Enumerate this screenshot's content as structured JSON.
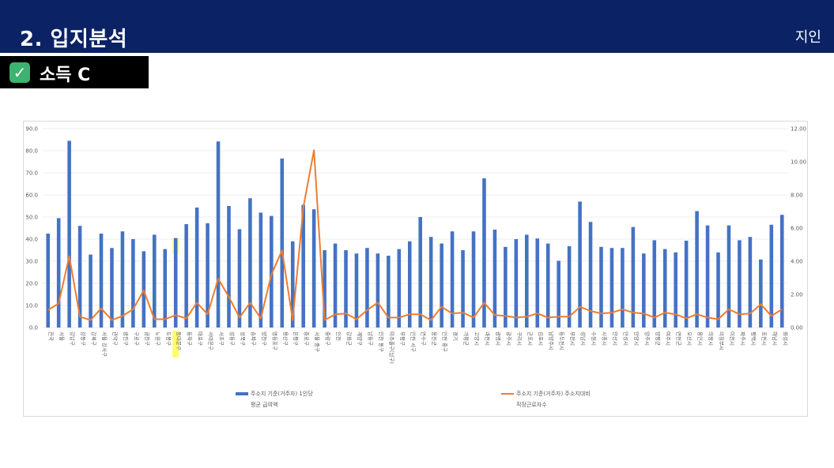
{
  "header": {
    "title": "2. 입지분석",
    "tag": "지인"
  },
  "section": {
    "label": "소득 C",
    "icon": "check-mark-icon"
  },
  "colors": {
    "header_bg": "#0b2265",
    "bar": "#4472c4",
    "line": "#ed7d31",
    "highlight": "#ffff66"
  },
  "chart_data": {
    "type": "bar",
    "categories": [
      "전국",
      "서울",
      "강남구",
      "강동구",
      "강북구",
      "서울 강서구",
      "관악구",
      "광진구",
      "구로구",
      "금천구",
      "노원구",
      "도봉구",
      "동대문구",
      "동작구",
      "마포구",
      "서대문구",
      "서초구",
      "성동구",
      "성북구",
      "송파구",
      "양천구",
      "영등포구",
      "용산구",
      "은평구",
      "종로구",
      "서울 중구",
      "중랑구",
      "인천",
      "강화군",
      "계양구",
      "남동구",
      "인천 동구",
      "미추홀구(남구)",
      "부평구",
      "인천 서구",
      "연수구",
      "옹진군",
      "인천 중구",
      "경기",
      "가평군",
      "고양시",
      "과천시",
      "광명시",
      "광주시",
      "구리시",
      "군포시",
      "김포시",
      "남양주시",
      "동두천시",
      "부천시",
      "성남시",
      "수원시",
      "시흥시",
      "안산시",
      "안성시",
      "안양시",
      "양주시",
      "양평군",
      "여주시",
      "연천군",
      "오산시",
      "용인시",
      "의왕시",
      "의정부시",
      "이천시",
      "파주시",
      "평택시",
      "포천시",
      "하남시",
      "화성시"
    ],
    "series": [
      {
        "name": "주소지 기준(거주자) 1인당",
        "name2": "평균 급여액",
        "axis": "left",
        "values": [
          42.5,
          49.5,
          84.5,
          46,
          33,
          42.5,
          36,
          43.5,
          40,
          34.5,
          42,
          35.5,
          40.5,
          46.8,
          54.3,
          47.2,
          84.2,
          55,
          44.5,
          58.5,
          52,
          50.5,
          76.5,
          39,
          55.5,
          53.5,
          35,
          38,
          35,
          33.5,
          36,
          33.5,
          32.5,
          35.5,
          39,
          50,
          41,
          38,
          43.5,
          35,
          43.5,
          67.5,
          44.3,
          36.5,
          40,
          42,
          40.3,
          38,
          30.2,
          36.8,
          57,
          47.8,
          36.5,
          36,
          36,
          45.5,
          33.5,
          39.5,
          35.5,
          34,
          39.3,
          52.7,
          46.2,
          34,
          46.2,
          39.5,
          41,
          30.8,
          46.5,
          51
        ]
      },
      {
        "name": "주소지 기준(거주자) 주소지대비",
        "name2": "직장근로자수",
        "axis": "right",
        "values": [
          1.05,
          1.45,
          4.3,
          0.65,
          0.45,
          1.15,
          0.45,
          0.7,
          1.1,
          2.25,
          0.5,
          0.5,
          0.75,
          0.55,
          1.5,
          0.8,
          2.95,
          1.85,
          0.6,
          1.5,
          0.55,
          3.2,
          4.65,
          0.45,
          7.25,
          10.7,
          0.45,
          0.8,
          0.85,
          0.5,
          1.05,
          1.5,
          0.6,
          0.6,
          0.8,
          0.8,
          0.45,
          1.25,
          0.85,
          0.9,
          0.6,
          1.5,
          0.75,
          0.7,
          0.6,
          0.65,
          0.85,
          0.6,
          0.65,
          0.65,
          1.25,
          1.0,
          0.85,
          0.9,
          1.1,
          0.9,
          0.85,
          0.6,
          0.9,
          0.8,
          0.55,
          0.8,
          0.6,
          0.5,
          1.1,
          0.8,
          0.85,
          1.4,
          0.7,
          1.1
        ]
      }
    ],
    "y_left": {
      "min": 0,
      "max": 90,
      "step": 10,
      "tick_labels": [
        "0.0",
        "10.0",
        "20.0",
        "30.0",
        "40.0",
        "50.0",
        "60.0",
        "70.0",
        "80.0",
        "90.0"
      ]
    },
    "y_right": {
      "min": 0,
      "max": 12,
      "step": 2,
      "tick_labels": [
        "0.00",
        "2.00",
        "4.00",
        "6.00",
        "8.00",
        "10.00",
        "12.00"
      ]
    },
    "highlighted_category": "동대문구",
    "grid": true,
    "legend_position": "bottom"
  }
}
